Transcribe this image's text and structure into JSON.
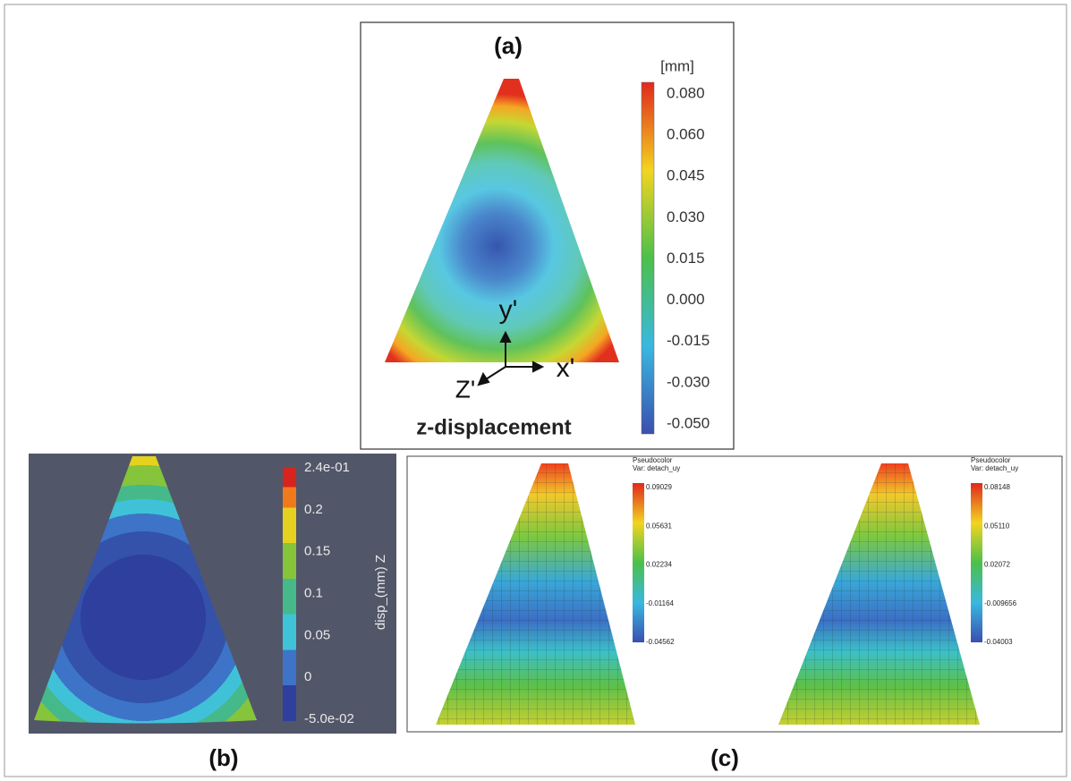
{
  "panel_a": {
    "label": "(a)",
    "unit": "[mm]",
    "ticks": [
      "0.080",
      "0.060",
      "0.045",
      "0.030",
      "0.015",
      "0.000",
      "-0.015",
      "-0.030",
      "-0.050"
    ],
    "axes": {
      "y": "y'",
      "x": "x'",
      "z": "Z'"
    },
    "caption": "z-displacement"
  },
  "panel_b": {
    "label": "(b)",
    "ticks": [
      "2.4e-01",
      "0.2",
      "0.15",
      "0.1",
      "0.05",
      "0",
      "-5.0e-02"
    ],
    "colorbar_title": "disp_(mm) Z"
  },
  "panel_c": {
    "label": "(c)",
    "plots": [
      {
        "title": "Pseudocolor",
        "variable": "Var: detach_uy",
        "ticks": [
          "0.09029",
          "0.05631",
          "0.02234",
          "-0.01164",
          "-0.04562"
        ]
      },
      {
        "title": "Pseudocolor",
        "variable": "Var: detach_uy",
        "ticks": [
          "0.08148",
          "0.05110",
          "0.02072",
          "-0.009656",
          "-0.04003"
        ]
      }
    ]
  }
}
